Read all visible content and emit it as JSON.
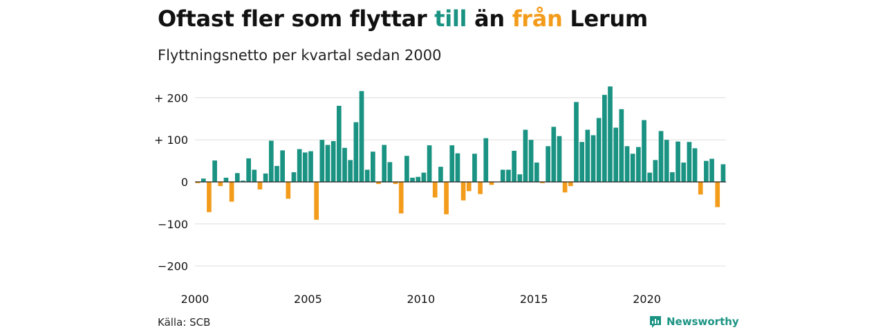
{
  "header": {
    "title_part1": "Oftast fler som flyttar ",
    "title_till": "till",
    "title_part2": " än ",
    "title_fran": "från",
    "title_part3": " Lerum",
    "subtitle": "Flyttningsnetto per kvartal sedan 2000"
  },
  "footer": {
    "source": "Källa: SCB",
    "brand": "Newsworthy",
    "brand_icon": "newsworthy-logo-icon"
  },
  "colors": {
    "positive": "#1a9383",
    "negative": "#f39c1c",
    "grid": "#dddddd",
    "zero_line": "#222222",
    "text": "#111111"
  },
  "chart_data": {
    "type": "bar",
    "title": "Oftast fler som flyttar till än från Lerum",
    "subtitle": "Flyttningsnetto per kvartal sedan 2000",
    "xlabel": "",
    "ylabel": "",
    "start_year": 2000,
    "periods_per_year": 4,
    "x_ticks": [
      "2000",
      "2005",
      "2010",
      "2015",
      "2020"
    ],
    "y_ticks": [
      {
        "value": 200,
        "label": "+ 200"
      },
      {
        "value": 100,
        "label": "+ 100"
      },
      {
        "value": 0,
        "label": "0"
      },
      {
        "value": -100,
        "label": "−100"
      },
      {
        "value": -200,
        "label": "−200"
      }
    ],
    "ylim": [
      -200,
      230
    ],
    "grid": true,
    "values": [
      -3,
      8,
      -72,
      51,
      -10,
      10,
      -47,
      21,
      3,
      56,
      29,
      -18,
      20,
      98,
      38,
      75,
      -40,
      23,
      78,
      70,
      73,
      -90,
      100,
      88,
      97,
      181,
      81,
      52,
      142,
      216,
      29,
      72,
      -5,
      88,
      47,
      -5,
      -75,
      62,
      10,
      12,
      22,
      87,
      -37,
      36,
      -77,
      87,
      68,
      -44,
      -22,
      67,
      -29,
      104,
      -7,
      0,
      29,
      29,
      74,
      18,
      124,
      100,
      46,
      -3,
      85,
      131,
      109,
      -25,
      -10,
      190,
      95,
      124,
      111,
      152,
      207,
      227,
      129,
      173,
      85,
      67,
      83,
      147,
      22,
      52,
      121,
      100,
      23,
      96,
      46,
      95,
      80,
      -30,
      50,
      55,
      -60,
      42
    ]
  }
}
